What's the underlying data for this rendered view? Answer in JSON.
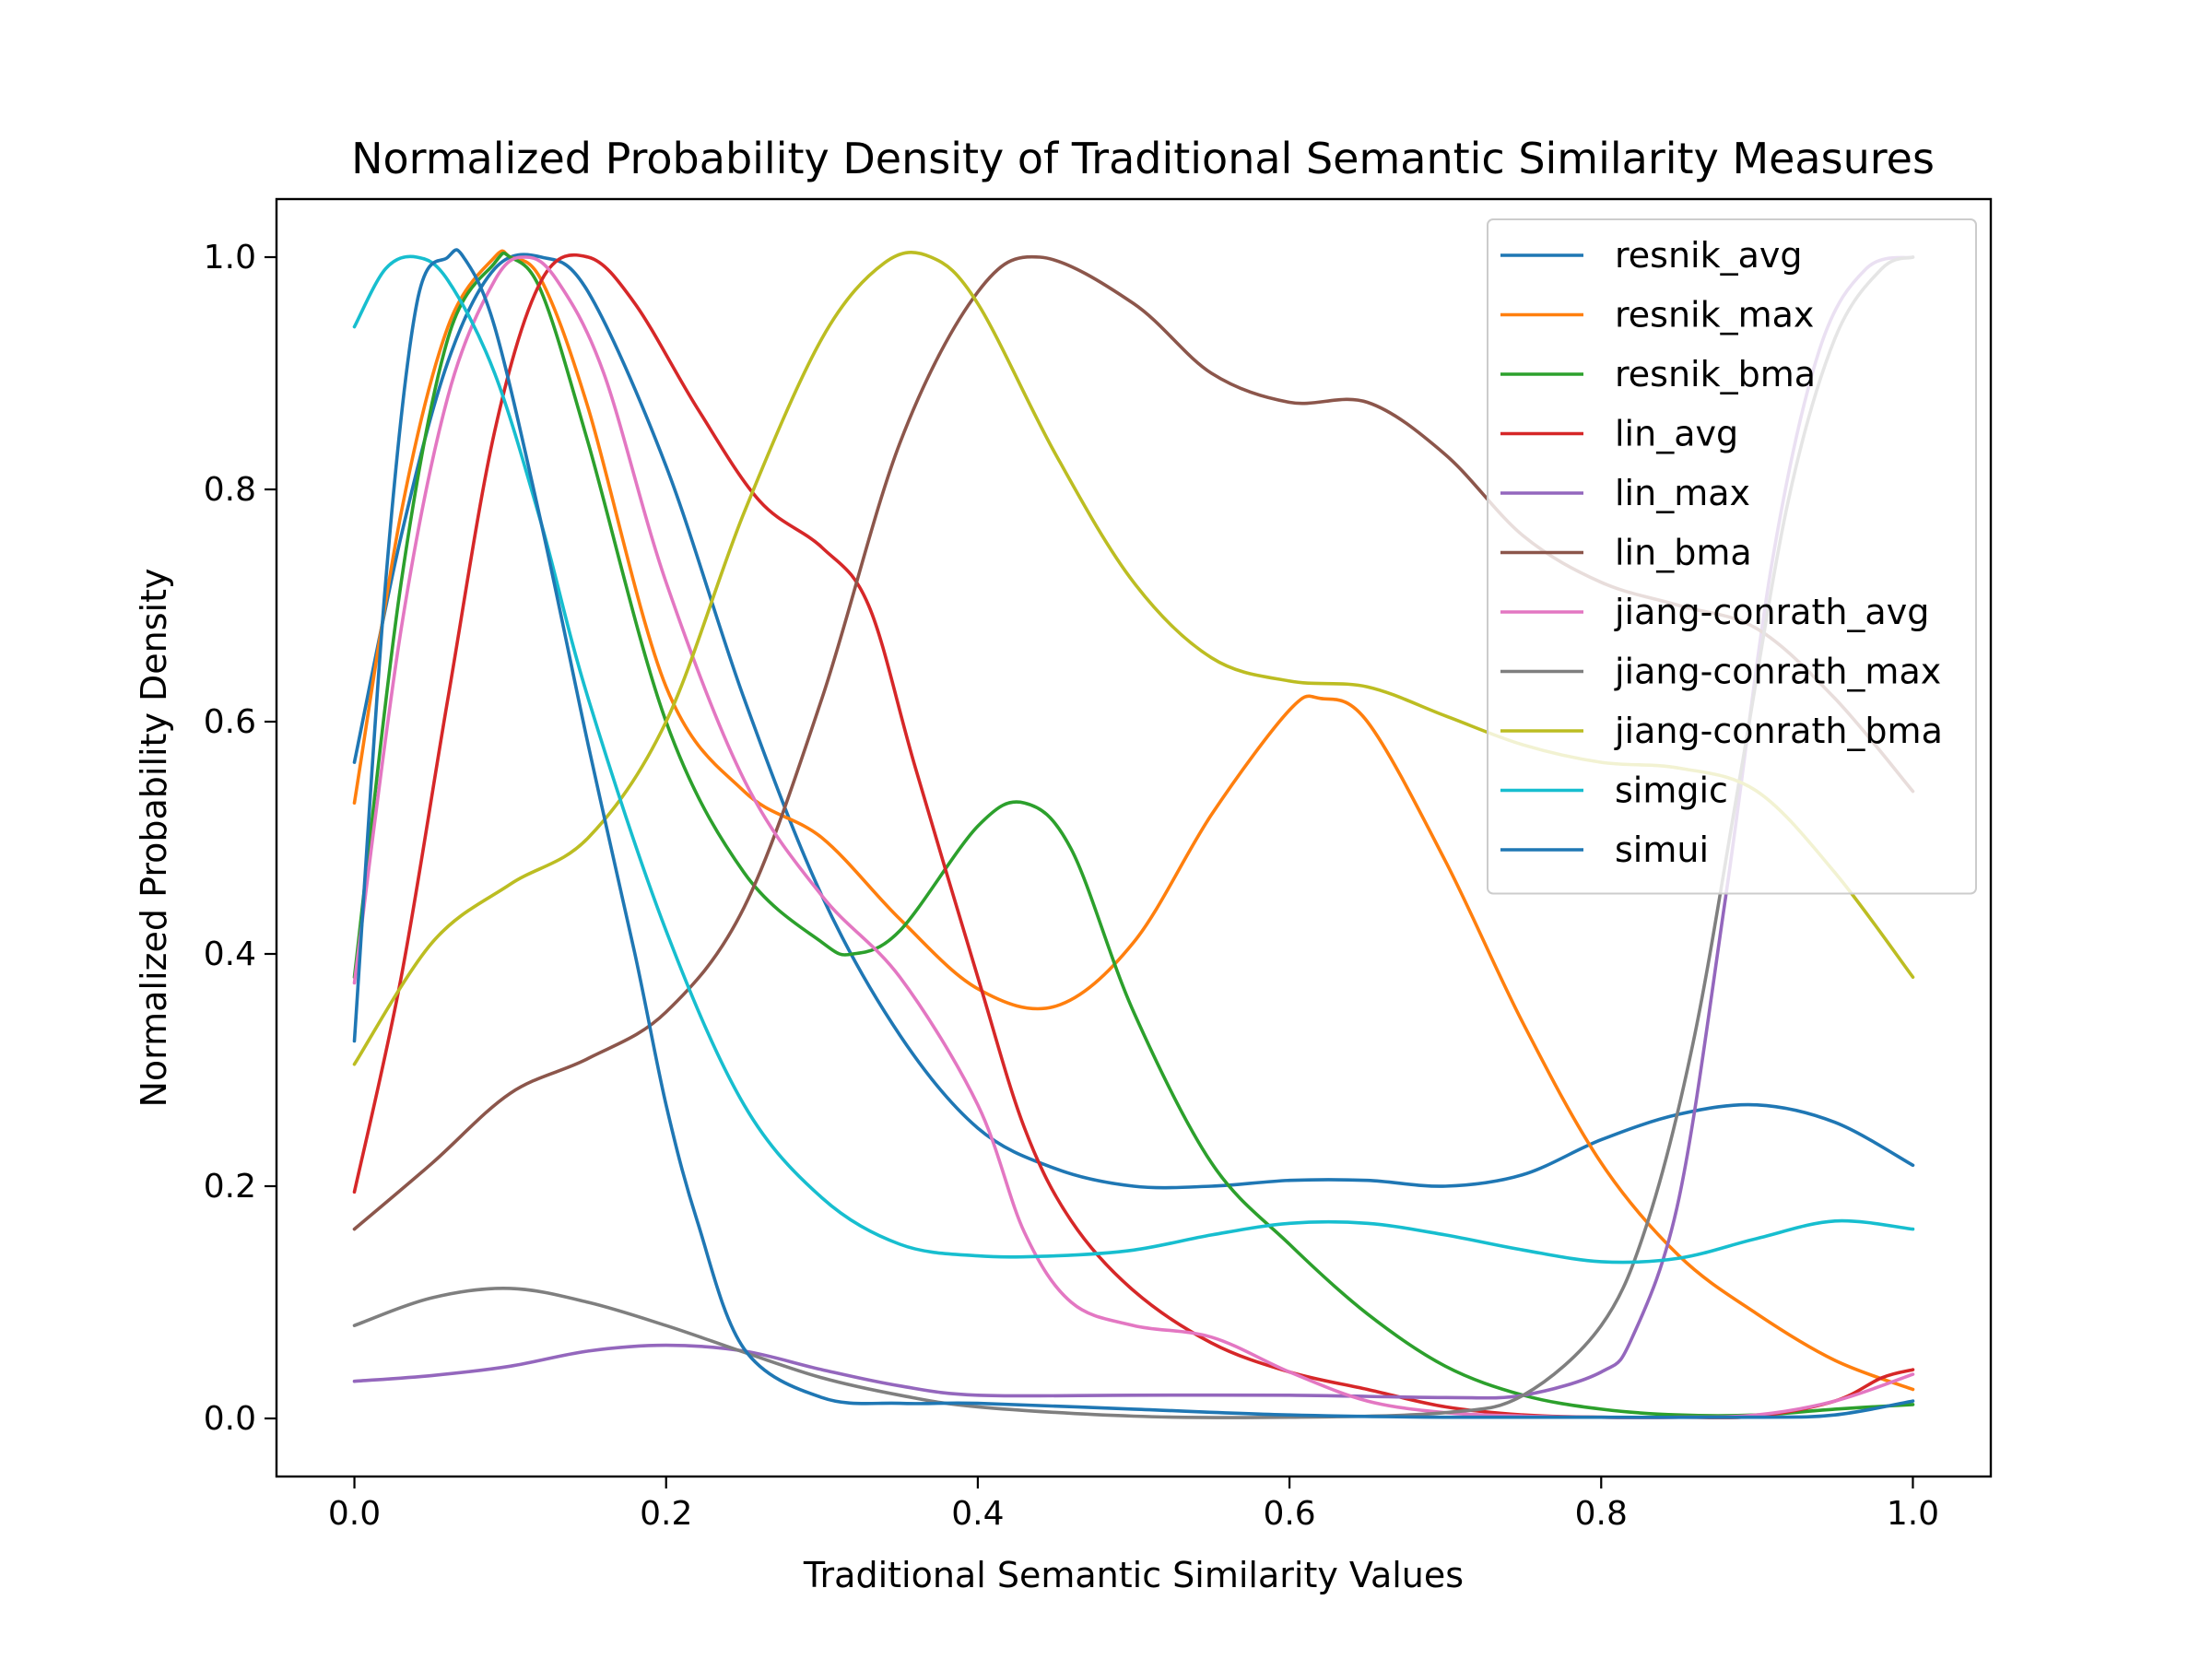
{
  "chart_data": {
    "type": "line",
    "title": "Normalized Probability Density of Traditional Semantic Similarity Measures",
    "xlabel": "Traditional Semantic Similarity Values",
    "ylabel": "Normalized Probability Density",
    "xlim": [
      -0.05,
      1.05
    ],
    "ylim": [
      -0.05,
      1.05
    ],
    "xticks": [
      0.0,
      0.2,
      0.4,
      0.6,
      0.8,
      1.0
    ],
    "xtick_labels": [
      "0.0",
      "0.2",
      "0.4",
      "0.6",
      "0.8",
      "1.0"
    ],
    "yticks": [
      0.0,
      0.2,
      0.4,
      0.6,
      0.8,
      1.0
    ],
    "ytick_labels": [
      "0.0",
      "0.2",
      "0.4",
      "0.6",
      "0.8",
      "1.0"
    ],
    "grid": false,
    "legend_position": "top-right",
    "series": [
      {
        "name": "resnik_avg",
        "color": "#1f77b4",
        "x": [
          0,
          0.03,
          0.06,
          0.09,
          0.12,
          0.15,
          0.2,
          0.25,
          0.3,
          0.35,
          0.4,
          0.45,
          0.5,
          0.55,
          0.6,
          0.65,
          0.7,
          0.75,
          0.8,
          0.85,
          0.9,
          0.95,
          1.0
        ],
        "y": [
          0.565,
          0.76,
          0.91,
          0.99,
          1.0,
          0.97,
          0.82,
          0.62,
          0.45,
          0.33,
          0.25,
          0.215,
          0.2,
          0.2,
          0.205,
          0.205,
          0.2,
          0.21,
          0.24,
          0.262,
          0.27,
          0.255,
          0.218
        ]
      },
      {
        "name": "resnik_max",
        "color": "#ff7f0e",
        "x": [
          0,
          0.03,
          0.06,
          0.09,
          0.1,
          0.12,
          0.15,
          0.2,
          0.25,
          0.3,
          0.35,
          0.4,
          0.45,
          0.5,
          0.55,
          0.6,
          0.62,
          0.65,
          0.7,
          0.75,
          0.8,
          0.85,
          0.9,
          0.95,
          1.0
        ],
        "y": [
          0.53,
          0.78,
          0.94,
          1.0,
          1.0,
          0.98,
          0.87,
          0.63,
          0.54,
          0.5,
          0.43,
          0.37,
          0.355,
          0.41,
          0.52,
          0.61,
          0.62,
          0.6,
          0.48,
          0.34,
          0.22,
          0.14,
          0.09,
          0.05,
          0.025
        ]
      },
      {
        "name": "resnik_bma",
        "color": "#2ca02c",
        "x": [
          0,
          0.03,
          0.06,
          0.09,
          0.1,
          0.12,
          0.15,
          0.2,
          0.25,
          0.3,
          0.32,
          0.35,
          0.4,
          0.43,
          0.46,
          0.5,
          0.55,
          0.6,
          0.65,
          0.7,
          0.75,
          0.8,
          0.85,
          0.9,
          0.95,
          1.0
        ],
        "y": [
          0.38,
          0.72,
          0.93,
          0.995,
          1.0,
          0.97,
          0.84,
          0.6,
          0.47,
          0.41,
          0.4,
          0.42,
          0.51,
          0.53,
          0.49,
          0.35,
          0.22,
          0.15,
          0.09,
          0.045,
          0.02,
          0.008,
          0.003,
          0.003,
          0.008,
          0.012
        ]
      },
      {
        "name": "lin_avg",
        "color": "#d62728",
        "x": [
          0,
          0.03,
          0.06,
          0.09,
          0.12,
          0.15,
          0.18,
          0.22,
          0.26,
          0.3,
          0.33,
          0.36,
          0.4,
          0.43,
          0.46,
          0.5,
          0.55,
          0.6,
          0.65,
          0.7,
          0.75,
          0.8,
          0.85,
          0.9,
          0.95,
          0.98,
          1.0
        ],
        "y": [
          0.195,
          0.38,
          0.62,
          0.85,
          0.98,
          1.0,
          0.96,
          0.87,
          0.79,
          0.75,
          0.7,
          0.56,
          0.38,
          0.25,
          0.17,
          0.11,
          0.065,
          0.04,
          0.025,
          0.01,
          0.003,
          0.001,
          0.001,
          0.002,
          0.015,
          0.035,
          0.042
        ]
      },
      {
        "name": "lin_max",
        "color": "#9467bd",
        "x": [
          0,
          0.05,
          0.1,
          0.15,
          0.2,
          0.25,
          0.3,
          0.35,
          0.4,
          0.5,
          0.6,
          0.7,
          0.75,
          0.8,
          0.82,
          0.85,
          0.88,
          0.91,
          0.94,
          0.97,
          1.0
        ],
        "y": [
          0.032,
          0.037,
          0.045,
          0.058,
          0.063,
          0.058,
          0.042,
          0.028,
          0.02,
          0.02,
          0.02,
          0.018,
          0.02,
          0.04,
          0.07,
          0.19,
          0.45,
          0.74,
          0.92,
          0.99,
          1.0
        ]
      },
      {
        "name": "lin_bma",
        "color": "#8c564b",
        "x": [
          0,
          0.05,
          0.1,
          0.15,
          0.2,
          0.25,
          0.3,
          0.35,
          0.4,
          0.44,
          0.5,
          0.55,
          0.6,
          0.65,
          0.7,
          0.75,
          0.8,
          0.85,
          0.9,
          0.95,
          1.0
        ],
        "y": [
          0.163,
          0.22,
          0.28,
          0.31,
          0.35,
          0.44,
          0.62,
          0.84,
          0.97,
          1.0,
          0.96,
          0.9,
          0.875,
          0.875,
          0.83,
          0.76,
          0.72,
          0.7,
          0.68,
          0.62,
          0.54
        ]
      },
      {
        "name": "jiang-conrath_avg",
        "color": "#e377c2",
        "x": [
          0,
          0.03,
          0.06,
          0.09,
          0.11,
          0.13,
          0.16,
          0.2,
          0.25,
          0.3,
          0.35,
          0.4,
          0.43,
          0.46,
          0.5,
          0.55,
          0.6,
          0.65,
          0.7,
          0.75,
          0.8,
          0.85,
          0.9,
          0.95,
          1.0
        ],
        "y": [
          0.375,
          0.68,
          0.88,
          0.98,
          1.0,
          0.98,
          0.9,
          0.72,
          0.55,
          0.45,
          0.38,
          0.27,
          0.16,
          0.1,
          0.08,
          0.07,
          0.04,
          0.015,
          0.005,
          0.002,
          0.001,
          0.001,
          0.003,
          0.015,
          0.038
        ]
      },
      {
        "name": "jiang-conrath_max",
        "color": "#7f7f7f",
        "x": [
          0,
          0.05,
          0.1,
          0.15,
          0.2,
          0.25,
          0.3,
          0.35,
          0.4,
          0.5,
          0.6,
          0.7,
          0.75,
          0.8,
          0.83,
          0.86,
          0.89,
          0.92,
          0.95,
          0.98,
          1.0
        ],
        "y": [
          0.08,
          0.104,
          0.112,
          0.1,
          0.08,
          0.057,
          0.035,
          0.02,
          0.01,
          0.002,
          0.001,
          0.005,
          0.02,
          0.08,
          0.17,
          0.33,
          0.56,
          0.79,
          0.93,
          0.99,
          1.0
        ]
      },
      {
        "name": "jiang-conrath_bma",
        "color": "#bcbd22",
        "x": [
          0,
          0.05,
          0.1,
          0.15,
          0.2,
          0.25,
          0.3,
          0.34,
          0.37,
          0.4,
          0.45,
          0.5,
          0.55,
          0.6,
          0.65,
          0.7,
          0.75,
          0.8,
          0.85,
          0.9,
          0.95,
          1.0
        ],
        "y": [
          0.305,
          0.41,
          0.46,
          0.5,
          0.6,
          0.78,
          0.93,
          0.995,
          1.0,
          0.96,
          0.83,
          0.72,
          0.655,
          0.635,
          0.63,
          0.605,
          0.58,
          0.565,
          0.56,
          0.54,
          0.47,
          0.38
        ]
      },
      {
        "name": "simgic",
        "color": "#17becf",
        "x": [
          0,
          0.02,
          0.04,
          0.06,
          0.09,
          0.12,
          0.15,
          0.2,
          0.25,
          0.3,
          0.35,
          0.4,
          0.45,
          0.5,
          0.55,
          0.6,
          0.65,
          0.7,
          0.75,
          0.8,
          0.85,
          0.9,
          0.95,
          1.0
        ],
        "y": [
          0.94,
          0.99,
          1.0,
          0.98,
          0.9,
          0.77,
          0.62,
          0.42,
          0.27,
          0.19,
          0.15,
          0.14,
          0.14,
          0.145,
          0.158,
          0.168,
          0.168,
          0.158,
          0.145,
          0.135,
          0.138,
          0.155,
          0.17,
          0.163
        ]
      },
      {
        "name": "simui",
        "color": "#1f77b4",
        "x": [
          0,
          0.02,
          0.04,
          0.06,
          0.07,
          0.09,
          0.12,
          0.15,
          0.18,
          0.2,
          0.22,
          0.25,
          0.3,
          0.35,
          0.4,
          0.5,
          0.6,
          0.7,
          0.8,
          0.9,
          0.95,
          1.0
        ],
        "y": [
          0.325,
          0.72,
          0.96,
          1.0,
          1.0,
          0.94,
          0.77,
          0.58,
          0.4,
          0.27,
          0.17,
          0.06,
          0.018,
          0.013,
          0.013,
          0.008,
          0.003,
          0.001,
          0.001,
          0.001,
          0.003,
          0.015
        ]
      }
    ]
  }
}
